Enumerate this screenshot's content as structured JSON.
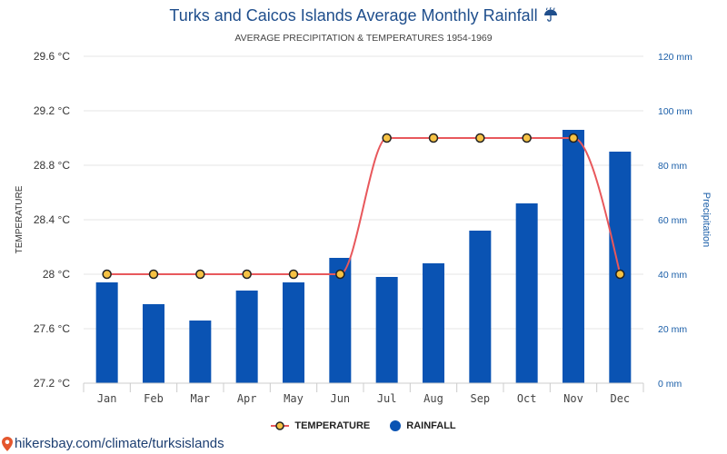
{
  "title": "Turks and Caicos Islands Average Monthly Rainfall",
  "title_icon": "umbrella-rain-icon",
  "subtitle": "AVERAGE PRECIPITATION & TEMPERATURES 1954-1969",
  "footer": {
    "url_text": "hikersbay.com/climate/turksislands",
    "icon": "map-pin-icon"
  },
  "colors": {
    "title": "#1f4e8c",
    "rainfall_bar": "#0a53b3",
    "temperature_line": "#e8585c",
    "temperature_marker": "#f6c244",
    "right_axis": "#1a5ea8",
    "footer": "#1d3f72",
    "pin": "#e4572e"
  },
  "chart_data": {
    "type": "bar",
    "categories": [
      "Jan",
      "Feb",
      "Mar",
      "Apr",
      "May",
      "Jun",
      "Jul",
      "Aug",
      "Sep",
      "Oct",
      "Nov",
      "Dec"
    ],
    "series": [
      {
        "name": "TEMPERATURE",
        "type": "line",
        "axis": "left",
        "values": [
          28,
          28,
          28,
          28,
          28,
          28,
          29,
          29,
          29,
          29,
          29,
          28
        ]
      },
      {
        "name": "RAINFALL",
        "type": "bar",
        "axis": "right",
        "values": [
          37,
          29,
          23,
          34,
          37,
          46,
          39,
          44,
          56,
          66,
          93,
          85
        ]
      }
    ],
    "y_left": {
      "label": "TEMPERATURE",
      "min": 27.2,
      "max": 29.6,
      "ticks": [
        "27.2 °C",
        "27.6 °C",
        "28 °C",
        "28.4 °C",
        "28.8 °C",
        "29.2 °C",
        "29.6 °C"
      ]
    },
    "y_right": {
      "label": "Precipitation",
      "min": 0,
      "max": 120,
      "ticks": [
        "0 mm",
        "20 mm",
        "40 mm",
        "60 mm",
        "80 mm",
        "100 mm",
        "120 mm"
      ]
    },
    "grid": true,
    "legend_position": "bottom"
  }
}
